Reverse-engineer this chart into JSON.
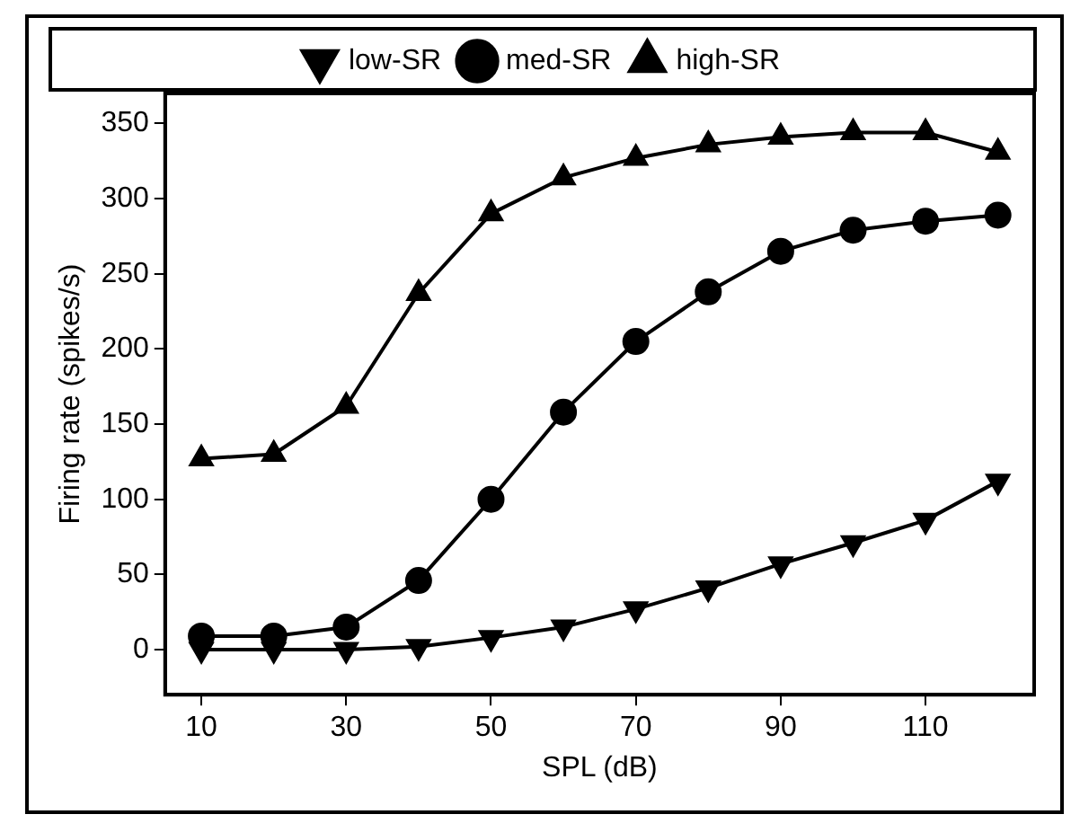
{
  "chart_data": {
    "type": "line",
    "xlabel": "SPL (dB)",
    "ylabel": "Firing rate (spikes/s)",
    "x": [
      10,
      20,
      30,
      40,
      50,
      60,
      70,
      80,
      90,
      100,
      110,
      120
    ],
    "series": [
      {
        "name": "low-SR",
        "color": "#000000",
        "marker": "triangle-down",
        "values": [
          0,
          0,
          0,
          2,
          8,
          15,
          27,
          41,
          57,
          71,
          86,
          112
        ]
      },
      {
        "name": "med-SR",
        "color": "#000000",
        "marker": "circle",
        "values": [
          9,
          9,
          15,
          46,
          100,
          158,
          205,
          238,
          265,
          279,
          285,
          289
        ]
      },
      {
        "name": "high-SR",
        "color": "#000000",
        "marker": "triangle",
        "values": [
          127,
          130,
          162,
          237,
          290,
          314,
          327,
          336,
          341,
          344,
          344,
          331
        ]
      }
    ],
    "xlim": [
      5,
      125
    ],
    "xticks": [
      10,
      30,
      50,
      70,
      90,
      110
    ],
    "ylim": [
      -30,
      370
    ],
    "yticks": [
      0,
      50,
      100,
      150,
      200,
      250,
      300,
      350
    ],
    "grid": false,
    "legend": "top",
    "line_style": "solid"
  }
}
